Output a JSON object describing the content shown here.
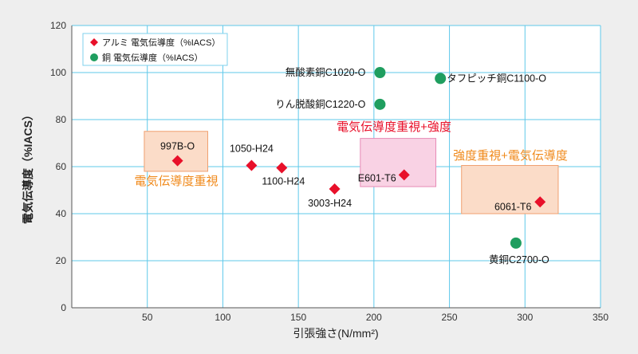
{
  "chart_data": {
    "type": "scatter",
    "xlabel": "引張強さ(N/mm²)",
    "ylabel": "電気伝導度（%IACS）",
    "xlim": [
      0,
      350
    ],
    "ylim": [
      0,
      120
    ],
    "xticks": [
      50,
      100,
      150,
      200,
      250,
      300,
      350
    ],
    "yticks": [
      0,
      20,
      40,
      60,
      80,
      100,
      120
    ],
    "grid": true,
    "legend_position": "top-left",
    "series": [
      {
        "name": "アルミ 電気伝導度（%IACS）",
        "marker": "diamond",
        "color": "#e8102a",
        "points": [
          {
            "label": "997B-O",
            "x": 70,
            "y": 62.5
          },
          {
            "label": "1050-H24",
            "x": 119,
            "y": 60.5
          },
          {
            "label": "1100-H24",
            "x": 139,
            "y": 59.5
          },
          {
            "label": "3003-H24",
            "x": 174,
            "y": 50.5
          },
          {
            "label": "E601-T6",
            "x": 220,
            "y": 56.5
          },
          {
            "label": "6061-T6",
            "x": 310,
            "y": 45
          }
        ]
      },
      {
        "name": "銅 電気伝導度（%IACS）",
        "marker": "circle",
        "color": "#1f9e5f",
        "points": [
          {
            "label": "無酸素銅C1020-O",
            "x": 204,
            "y": 100
          },
          {
            "label": "タフピッチ銅C1100-O",
            "x": 244,
            "y": 97.5
          },
          {
            "label": "りん脱酸銅C1220-O",
            "x": 204,
            "y": 86.5
          },
          {
            "label": "黄銅C2700-O",
            "x": 294,
            "y": 27.5
          }
        ]
      }
    ],
    "regions": [
      {
        "label": "電気伝導度重視",
        "x0": 48,
        "x1": 90,
        "y0": 58,
        "y1": 75,
        "fill": "#fbdcc8",
        "stroke": "#f0a070",
        "text_color": "#f08a1c"
      },
      {
        "label": "電気伝導度重視+強度",
        "x0": 191,
        "x1": 241,
        "y0": 51.5,
        "y1": 72,
        "fill": "#f9d2e4",
        "stroke": "#e78bb6",
        "text_color": "#e8102a"
      },
      {
        "label": "強度重視+電気伝導度",
        "x0": 258,
        "x1": 322,
        "y0": 40,
        "y1": 60.5,
        "fill": "#fbdcc8",
        "stroke": "#f0a070",
        "text_color": "#f08a1c"
      }
    ]
  }
}
